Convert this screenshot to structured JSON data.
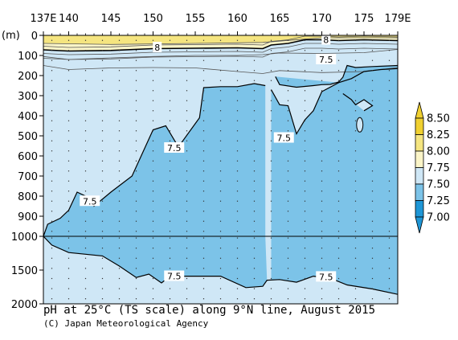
{
  "chart_data": {
    "type": "heatmap",
    "title": "pH at 25°C (TS scale) along 9°N line, August 2015",
    "credit": "(C) Japan Meteorological Agency",
    "ylabel": "(m)",
    "x_tick_labels": [
      "137E",
      "140",
      "145",
      "150",
      "155",
      "160",
      "165",
      "170",
      "175",
      "179E"
    ],
    "x_tick_values": [
      137,
      140,
      145,
      150,
      155,
      160,
      165,
      170,
      175,
      179
    ],
    "xlim": [
      137,
      179
    ],
    "y_tick_labels_upper": [
      "0",
      "100",
      "200",
      "300",
      "400",
      "500",
      "600",
      "700",
      "800",
      "900",
      "1000"
    ],
    "y_tick_values_upper": [
      0,
      100,
      200,
      300,
      400,
      500,
      600,
      700,
      800,
      900,
      1000
    ],
    "y_tick_labels_lower": [
      "1500",
      "2000"
    ],
    "y_tick_values_lower": [
      1500,
      2000
    ],
    "ylim": [
      0,
      2000
    ],
    "y_break_depth": 1000,
    "colorbar": {
      "levels": [
        "8.50",
        "8.25",
        "8.00",
        "7.75",
        "7.50",
        "7.25",
        "7.00"
      ],
      "colors": [
        "#f0d030",
        "#f5e580",
        "#fbf5c8",
        "#cfe7f6",
        "#7cc3e8",
        "#1e96d6"
      ],
      "under_color": "#1e96d6",
      "over_color": "#f0d030"
    },
    "contour_labels": [
      {
        "text": "8",
        "lon": 150.5,
        "depth": 60
      },
      {
        "text": "8",
        "lon": 170.5,
        "depth": 22
      },
      {
        "text": "7.5",
        "lon": 170.5,
        "depth": 120
      },
      {
        "text": "7.5",
        "lon": 152.5,
        "depth": 560
      },
      {
        "text": "7.5",
        "lon": 165.5,
        "depth": 510
      },
      {
        "text": "7.5",
        "lon": 142.5,
        "depth": 825
      },
      {
        "text": "7.5",
        "lon": 152.5,
        "depth": 1590
      },
      {
        "text": "7.5",
        "lon": 170.5,
        "depth": 1600
      }
    ],
    "iso_8": [
      [
        137,
        72
      ],
      [
        140,
        78
      ],
      [
        145,
        75
      ],
      [
        150,
        66
      ],
      [
        155,
        64
      ],
      [
        160,
        62
      ],
      [
        163,
        66
      ],
      [
        164,
        48
      ],
      [
        166,
        40
      ],
      [
        168,
        22
      ],
      [
        170,
        22
      ],
      [
        172,
        26
      ],
      [
        175,
        22
      ],
      [
        179,
        26
      ]
    ],
    "iso_7_5_deep_west": [
      [
        137,
        1000
      ],
      [
        137.5,
        940
      ],
      [
        139,
        910
      ],
      [
        140,
        870
      ],
      [
        141,
        780
      ],
      [
        142.5,
        810
      ],
      [
        143,
        850
      ],
      [
        145,
        780
      ],
      [
        147.5,
        700
      ],
      [
        150,
        470
      ],
      [
        151.5,
        450
      ],
      [
        153,
        555
      ],
      [
        155.5,
        410
      ],
      [
        156,
        260
      ],
      [
        158,
        255
      ],
      [
        160,
        255
      ],
      [
        162,
        240
      ],
      [
        163.3,
        250
      ]
    ],
    "iso_7_5_deep_east": [
      [
        164,
        270
      ],
      [
        165,
        345
      ],
      [
        166,
        350
      ],
      [
        167,
        490
      ],
      [
        168,
        420
      ],
      [
        169,
        375
      ],
      [
        170,
        280
      ],
      [
        172,
        235
      ],
      [
        173.5,
        215
      ],
      [
        175,
        180
      ],
      [
        177,
        170
      ],
      [
        179,
        165
      ]
    ],
    "iso_7_5_lower": [
      [
        137,
        1000
      ],
      [
        138,
        1130
      ],
      [
        140,
        1240
      ],
      [
        144,
        1290
      ],
      [
        146,
        1440
      ],
      [
        148,
        1610
      ],
      [
        149.5,
        1560
      ],
      [
        151,
        1690
      ],
      [
        152,
        1590
      ],
      [
        158,
        1590
      ],
      [
        161,
        1760
      ],
      [
        163,
        1740
      ],
      [
        163.5,
        1650
      ],
      [
        165,
        1640
      ],
      [
        167,
        1680
      ],
      [
        169,
        1590
      ],
      [
        171,
        1620
      ],
      [
        173,
        1720
      ],
      [
        176,
        1780
      ],
      [
        179,
        1860
      ]
    ],
    "iso_7_75_upper": [
      [
        137,
        105
      ],
      [
        140,
        120
      ],
      [
        145,
        112
      ],
      [
        150,
        105
      ],
      [
        155,
        100
      ],
      [
        160,
        100
      ],
      [
        163,
        96
      ],
      [
        165,
        88
      ],
      [
        170,
        90
      ],
      [
        175,
        86
      ],
      [
        179,
        70
      ]
    ],
    "iso_7_75_lower": [
      [
        137,
        150
      ],
      [
        140,
        170
      ],
      [
        145,
        162
      ],
      [
        150,
        160
      ],
      [
        155,
        162
      ],
      [
        160,
        180
      ],
      [
        163,
        190
      ],
      [
        165,
        175
      ],
      [
        170,
        185
      ],
      [
        175,
        180
      ],
      [
        179,
        160
      ]
    ],
    "iso_7_5_upper": [
      [
        164.5,
        205
      ],
      [
        165,
        245
      ],
      [
        167,
        258
      ],
      [
        169,
        250
      ],
      [
        170,
        245
      ],
      [
        171,
        244
      ],
      [
        172,
        232
      ],
      [
        172.5,
        208
      ],
      [
        173,
        150
      ],
      [
        174,
        160
      ],
      [
        176,
        155
      ],
      [
        179,
        150
      ]
    ],
    "iso_7_5_sub": [
      [
        172.5,
        290
      ],
      [
        173.5,
        320
      ],
      [
        174,
        345
      ],
      [
        175,
        320
      ],
      [
        176,
        350
      ],
      [
        175,
        375
      ]
    ],
    "iso_8_25": [
      [
        137,
        40
      ],
      [
        145,
        45
      ],
      [
        155,
        40
      ],
      [
        163,
        35
      ],
      [
        170,
        12
      ],
      [
        179,
        12
      ]
    ]
  }
}
